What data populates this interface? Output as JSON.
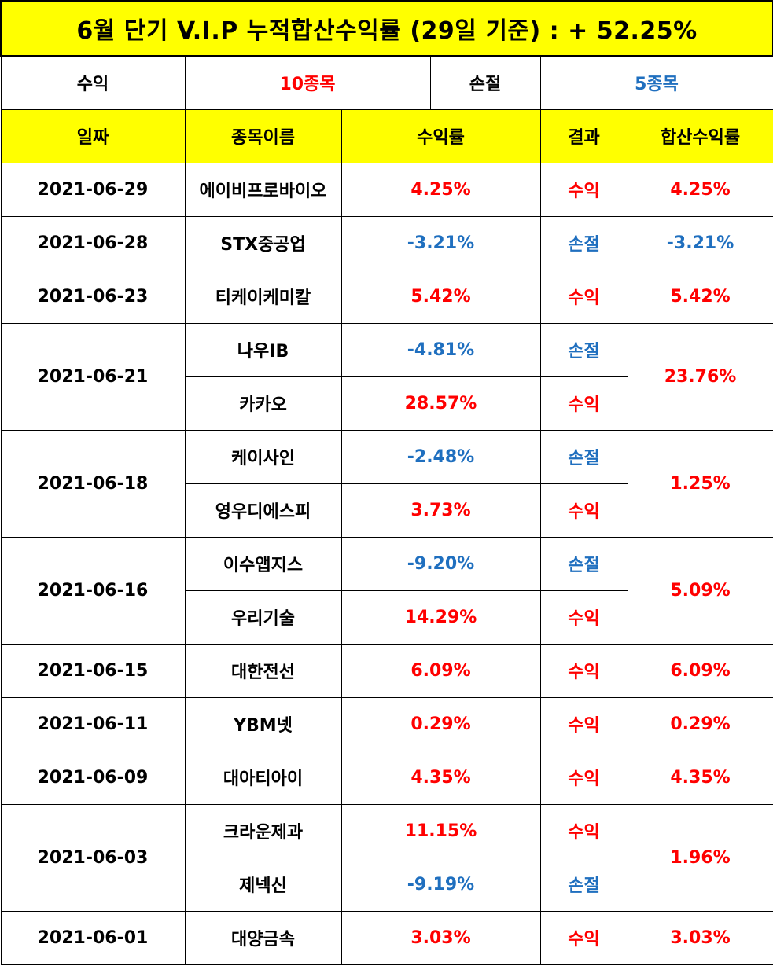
{
  "title": "6월 단기 V.I.P 누적합산수익률 (29일 기준) : + 52.25%",
  "summary": {
    "profit_label": "수익",
    "profit_count": "10종목",
    "loss_label": "손절",
    "loss_count": "5종목"
  },
  "headers": [
    "일짜",
    "종목이름",
    "수익률",
    "결과",
    "합산수익률"
  ],
  "colors": {
    "header_bg": "#ffff00",
    "profit": "#ff0000",
    "loss": "#1f6fbf"
  },
  "groups": [
    {
      "date": "2021-06-29",
      "total": "4.25%",
      "total_type": "profit",
      "items": [
        {
          "name": "에이비프로바이오",
          "rate": "4.25%",
          "result": "수익",
          "type": "profit"
        }
      ]
    },
    {
      "date": "2021-06-28",
      "total": "-3.21%",
      "total_type": "loss",
      "items": [
        {
          "name": "STX중공업",
          "rate": "-3.21%",
          "result": "손절",
          "type": "loss"
        }
      ]
    },
    {
      "date": "2021-06-23",
      "total": "5.42%",
      "total_type": "profit",
      "items": [
        {
          "name": "티케이케미칼",
          "rate": "5.42%",
          "result": "수익",
          "type": "profit"
        }
      ]
    },
    {
      "date": "2021-06-21",
      "total": "23.76%",
      "total_type": "profit",
      "items": [
        {
          "name": "나우IB",
          "rate": "-4.81%",
          "result": "손절",
          "type": "loss"
        },
        {
          "name": "카카오",
          "rate": "28.57%",
          "result": "수익",
          "type": "profit"
        }
      ]
    },
    {
      "date": "2021-06-18",
      "total": "1.25%",
      "total_type": "profit",
      "items": [
        {
          "name": "케이사인",
          "rate": "-2.48%",
          "result": "손절",
          "type": "loss"
        },
        {
          "name": "영우디에스피",
          "rate": "3.73%",
          "result": "수익",
          "type": "profit"
        }
      ]
    },
    {
      "date": "2021-06-16",
      "total": "5.09%",
      "total_type": "profit",
      "items": [
        {
          "name": "이수앱지스",
          "rate": "-9.20%",
          "result": "손절",
          "type": "loss"
        },
        {
          "name": "우리기술",
          "rate": "14.29%",
          "result": "수익",
          "type": "profit"
        }
      ]
    },
    {
      "date": "2021-06-15",
      "total": "6.09%",
      "total_type": "profit",
      "items": [
        {
          "name": "대한전선",
          "rate": "6.09%",
          "result": "수익",
          "type": "profit"
        }
      ]
    },
    {
      "date": "2021-06-11",
      "total": "0.29%",
      "total_type": "profit",
      "items": [
        {
          "name": "YBM넷",
          "rate": "0.29%",
          "result": "수익",
          "type": "profit"
        }
      ]
    },
    {
      "date": "2021-06-09",
      "total": "4.35%",
      "total_type": "profit",
      "items": [
        {
          "name": "대아티아이",
          "rate": "4.35%",
          "result": "수익",
          "type": "profit"
        }
      ]
    },
    {
      "date": "2021-06-03",
      "total": "1.96%",
      "total_type": "profit",
      "items": [
        {
          "name": "크라운제과",
          "rate": "11.15%",
          "result": "수익",
          "type": "profit"
        },
        {
          "name": "제넥신",
          "rate": "-9.19%",
          "result": "손절",
          "type": "loss"
        }
      ]
    },
    {
      "date": "2021-06-01",
      "total": "3.03%",
      "total_type": "profit",
      "items": [
        {
          "name": "대양금속",
          "rate": "3.03%",
          "result": "수익",
          "type": "profit"
        }
      ]
    }
  ]
}
